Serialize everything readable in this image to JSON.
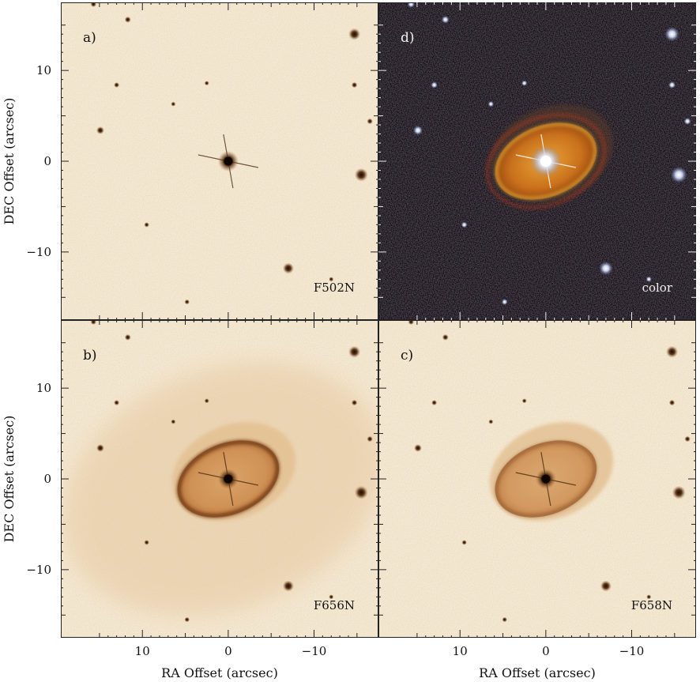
{
  "figure": {
    "panels": [
      {
        "key": "a",
        "id_label": "a)",
        "filter": "F502N",
        "style": "light",
        "nebula": "none"
      },
      {
        "key": "d",
        "id_label": "d)",
        "filter": "color",
        "style": "dark",
        "nebula": "color"
      },
      {
        "key": "b",
        "id_label": "b)",
        "filter": "F656N",
        "style": "light",
        "nebula": "strong"
      },
      {
        "key": "c",
        "id_label": "c)",
        "filter": "F658N",
        "style": "light",
        "nebula": "medium"
      }
    ],
    "x_axis": {
      "title": "RA Offset (arcsec)",
      "ticks": [
        {
          "value": 10,
          "label": "10"
        },
        {
          "value": 0,
          "label": "0"
        },
        {
          "value": -10,
          "label": "−10"
        }
      ],
      "range": [
        19.5,
        -17.5
      ],
      "reversed": true
    },
    "y_axis": {
      "title": "DEC Offset (arcsec)",
      "ticks": [
        {
          "value": 10,
          "label": "10"
        },
        {
          "value": 0,
          "label": "0"
        },
        {
          "value": -10,
          "label": "−10"
        }
      ],
      "range": [
        -17.5,
        17.5
      ]
    },
    "stars": [
      {
        "ra": 15.7,
        "dec": 17.3,
        "mag": 1.0
      },
      {
        "ra": 11.7,
        "dec": 15.6,
        "mag": 1.1
      },
      {
        "ra": -14.7,
        "dec": 14.0,
        "mag": 2.6
      },
      {
        "ra": 13.0,
        "dec": 8.4,
        "mag": 0.9
      },
      {
        "ra": 2.5,
        "dec": 8.6,
        "mag": 0.7
      },
      {
        "ra": -14.7,
        "dec": 8.4,
        "mag": 1.0
      },
      {
        "ra": 6.4,
        "dec": 6.3,
        "mag": 0.7
      },
      {
        "ra": -16.5,
        "dec": 4.4,
        "mag": 1.0
      },
      {
        "ra": 14.9,
        "dec": 3.4,
        "mag": 1.5
      },
      {
        "ra": -15.5,
        "dec": -1.5,
        "mag": 3.0
      },
      {
        "ra": 9.5,
        "dec": -7.0,
        "mag": 0.8
      },
      {
        "ra": -7.0,
        "dec": -11.8,
        "mag": 2.4
      },
      {
        "ra": 4.8,
        "dec": -15.5,
        "mag": 0.8
      },
      {
        "ra": -12.0,
        "dec": -13.0,
        "mag": 0.7
      }
    ],
    "colors": {
      "light_bg": "#f6ead4",
      "light_star": "#5a2e0a",
      "dark_bg": "#120d16",
      "ring_light": "#c7884a",
      "ring_dark": "#6b3512"
    }
  }
}
